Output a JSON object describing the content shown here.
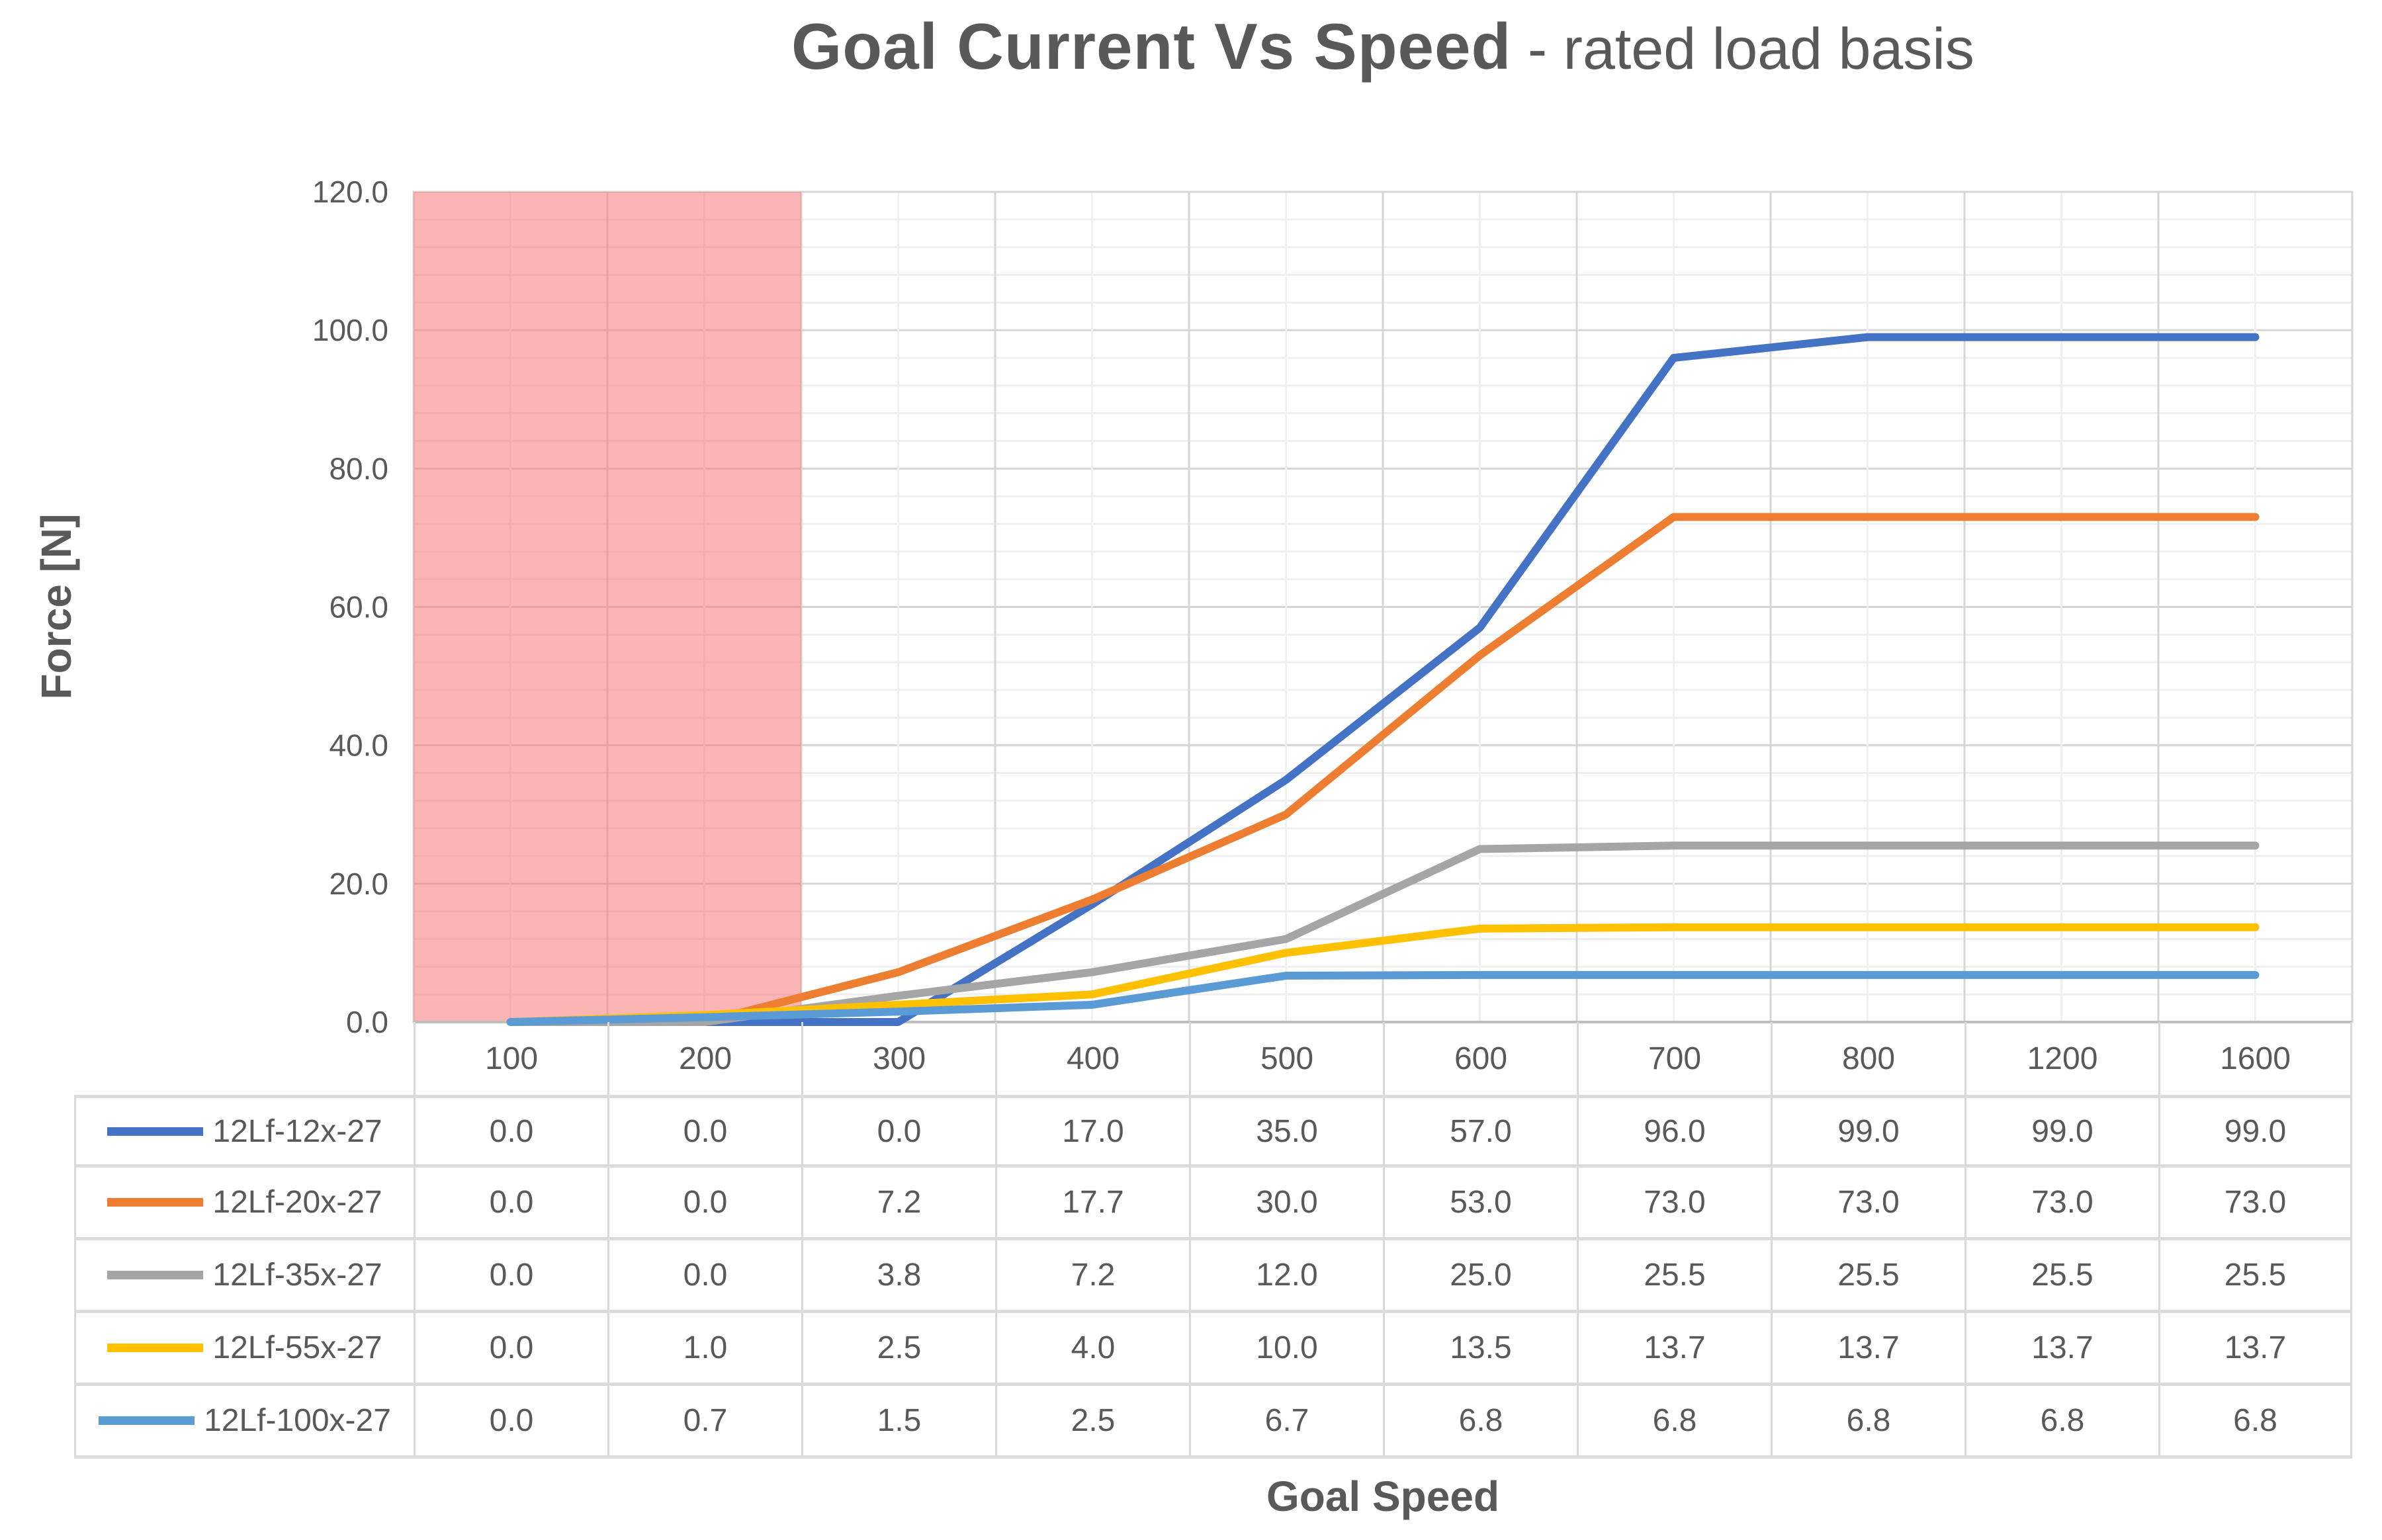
{
  "title": {
    "main": "Goal Current Vs Speed",
    "suffix": " - rated load basis"
  },
  "chart_data": {
    "type": "line",
    "title": "Goal Current Vs Speed - rated load basis",
    "xlabel": "Goal Speed",
    "ylabel": "Force [N]",
    "categories": [
      100,
      200,
      300,
      400,
      500,
      600,
      700,
      800,
      1200,
      1600
    ],
    "series": [
      {
        "name": "12Lf-12x-27",
        "color": "#4472C4",
        "values": [
          0.0,
          0.0,
          0.0,
          17.0,
          35.0,
          57.0,
          96.0,
          99.0,
          99.0,
          99.0
        ]
      },
      {
        "name": "12Lf-20x-27",
        "color": "#ED7D31",
        "values": [
          0.0,
          0.0,
          7.2,
          17.7,
          30.0,
          53.0,
          73.0,
          73.0,
          73.0,
          73.0
        ]
      },
      {
        "name": "12Lf-35x-27",
        "color": "#A5A5A5",
        "values": [
          0.0,
          0.0,
          3.8,
          7.2,
          12.0,
          25.0,
          25.5,
          25.5,
          25.5,
          25.5
        ]
      },
      {
        "name": "12Lf-55x-27",
        "color": "#FFC000",
        "values": [
          0.0,
          1.0,
          2.5,
          4.0,
          10.0,
          13.5,
          13.7,
          13.7,
          13.7,
          13.7
        ]
      },
      {
        "name": "12Lf-100x-27",
        "color": "#5B9BD5",
        "values": [
          0.0,
          0.7,
          1.5,
          2.5,
          6.7,
          6.8,
          6.8,
          6.8,
          6.8,
          6.8
        ]
      }
    ],
    "ylim": [
      0,
      120
    ],
    "y_major_unit": 20,
    "y_minor_unit": 4,
    "y_tick_labels": [
      "0.0",
      "20.0",
      "40.0",
      "60.0",
      "80.0",
      "100.0",
      "120.0"
    ],
    "value_format": "one-decimal",
    "grid": true,
    "legend_position": "table-left",
    "shaded_region": {
      "covers_categories": [
        100,
        200
      ],
      "fill": "#F97878",
      "opacity": 0.55
    }
  },
  "style_colors": {
    "text": "#595959",
    "grid_minor": "#EFEFEF",
    "grid_major": "#D6D6D6",
    "axis_line": "#BFBFBF",
    "table_border": "#D9D9D9"
  }
}
